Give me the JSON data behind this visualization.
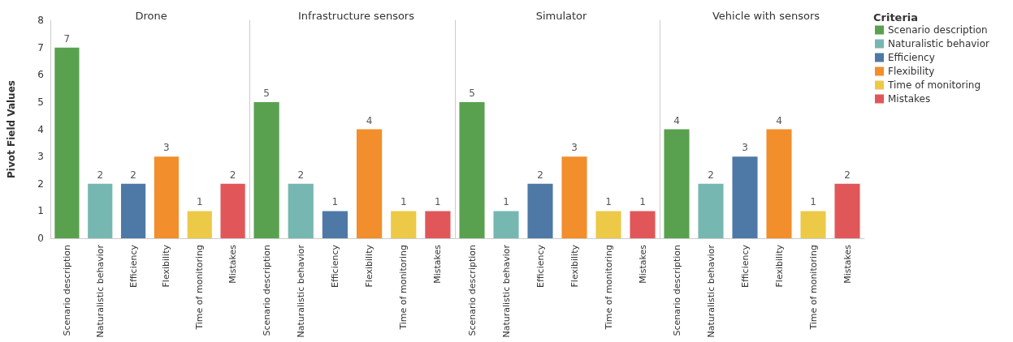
{
  "chart_data": [
    {
      "type": "bar",
      "title": "Drone",
      "ylabel": "Pivot Field Values",
      "categories": [
        "Scenario description",
        "Naturalistic behavior",
        "Efficiency",
        "Flexibility",
        "Time of monitoring",
        "Mistakes"
      ],
      "values": [
        7,
        2,
        2,
        3,
        1,
        2
      ],
      "colors": [
        "#59a14f",
        "#76b7b2",
        "#4e79a7",
        "#f28e2b",
        "#edc948",
        "#e15759"
      ],
      "ylim": [
        0,
        8
      ],
      "yticks": [
        0,
        1,
        2,
        3,
        4,
        5,
        6,
        7,
        8
      ],
      "data_labels": true
    },
    {
      "type": "bar",
      "title": "Infrastructure sensors",
      "categories": [
        "Scenario description",
        "Naturalistic behavior",
        "Efficiency",
        "Flexibility",
        "Time of monitoring",
        "Mistakes"
      ],
      "values": [
        5,
        2,
        1,
        4,
        1,
        1
      ],
      "colors": [
        "#59a14f",
        "#76b7b2",
        "#4e79a7",
        "#f28e2b",
        "#edc948",
        "#e15759"
      ],
      "ylim": [
        0,
        8
      ],
      "yticks": [
        0,
        1,
        2,
        3,
        4,
        5,
        6,
        7,
        8
      ],
      "tick_labels": "x",
      "data_labels": true
    },
    {
      "type": "bar",
      "title": "Simulator",
      "categories": [
        "Scenario description",
        "Naturalistic behavior",
        "Efficiency",
        "Flexibility",
        "Time of monitoring",
        "Mistakes"
      ],
      "values": [
        5,
        1,
        2,
        3,
        1,
        1
      ],
      "colors": [
        "#59a14f",
        "#76b7b2",
        "#4e79a7",
        "#f28e2b",
        "#edc948",
        "#e15759"
      ],
      "ylim": [
        0,
        8
      ],
      "yticks": [
        0,
        1,
        2,
        3,
        4,
        5,
        6,
        7,
        8
      ],
      "tick_labels": "x",
      "data_labels": true
    },
    {
      "type": "bar",
      "title": "Vehicle with sensors",
      "categories": [
        "Scenario description",
        "Naturalistic behavior",
        "Efficiency",
        "Flexibility",
        "Time of monitoring",
        "Mistakes"
      ],
      "series": [
        {
          "name": "Scenario description",
          "color": "#59a14f",
          "values": [
            4,
            null,
            null,
            null,
            null,
            null
          ]
        },
        {
          "name": "Naturalistic behavior",
          "color": "#76b7b2",
          "values": [
            null,
            2,
            null,
            null,
            null,
            null
          ]
        },
        {
          "name": "Efficiency",
          "color": "#4e79a7",
          "values": [
            null,
            null,
            3,
            null,
            null,
            null
          ]
        },
        {
          "name": "Flexibility",
          "color": "#f28e2b",
          "values": [
            null,
            null,
            null,
            4,
            null,
            null
          ]
        },
        {
          "name": "Time of monitoring",
          "color": "#edc948",
          "values": [
            null,
            null,
            null,
            null,
            1,
            null
          ]
        },
        {
          "name": "Mistakes",
          "color": "#e15759",
          "values": [
            null,
            null,
            null,
            null,
            null,
            2
          ]
        }
      ],
      "ylim": [
        0,
        8
      ],
      "yticks": [
        0,
        1,
        2,
        3,
        4,
        5,
        6,
        7,
        8
      ],
      "tick_labels": "x",
      "data_labels": true,
      "legend": "right",
      "legend_title": "Criteria"
    }
  ]
}
